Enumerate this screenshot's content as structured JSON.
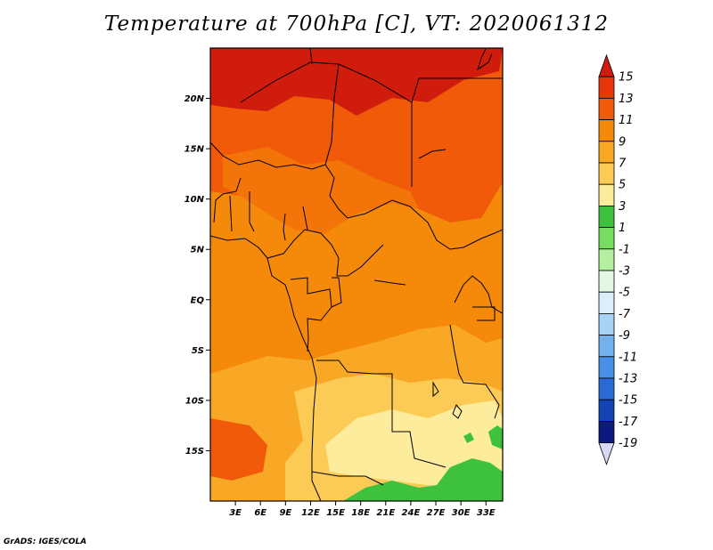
{
  "title": "Temperature at 700hPa [C], VT: 2020061312",
  "credit": "GrADS: IGES/COLA",
  "map": {
    "lon_range": [
      0,
      35
    ],
    "lat_range": [
      -20,
      25
    ],
    "lat_ticks": [
      {
        "value": 20,
        "label": "20N"
      },
      {
        "value": 15,
        "label": "15N"
      },
      {
        "value": 10,
        "label": "10N"
      },
      {
        "value": 5,
        "label": "5N"
      },
      {
        "value": 0,
        "label": "EQ"
      },
      {
        "value": -5,
        "label": "5S"
      },
      {
        "value": -10,
        "label": "10S"
      },
      {
        "value": -15,
        "label": "15S"
      }
    ],
    "lon_ticks": [
      {
        "value": 3,
        "label": "3E"
      },
      {
        "value": 6,
        "label": "6E"
      },
      {
        "value": 9,
        "label": "9E"
      },
      {
        "value": 12,
        "label": "12E"
      },
      {
        "value": 15,
        "label": "15E"
      },
      {
        "value": 18,
        "label": "18E"
      },
      {
        "value": 21,
        "label": "21E"
      },
      {
        "value": 24,
        "label": "24E"
      },
      {
        "value": 27,
        "label": "27E"
      },
      {
        "value": 30,
        "label": "30E"
      },
      {
        "value": 33,
        "label": "33E"
      }
    ]
  },
  "colorbar": {
    "labels": [
      "15",
      "13",
      "11",
      "9",
      "7",
      "5",
      "3",
      "1",
      "-1",
      "-3",
      "-5",
      "-7",
      "-9",
      "-11",
      "-13",
      "-15",
      "-17",
      "-19"
    ],
    "colors": [
      "#d01c0c",
      "#e8360a",
      "#f05a08",
      "#f58a0a",
      "#f8a824",
      "#fbcb55",
      "#fcec9c",
      "#3ec23e",
      "#78dc62",
      "#b4f0a0",
      "#e2f8e2",
      "#dceefb",
      "#a8d2f6",
      "#74b2ee",
      "#4890e6",
      "#2a6ad4",
      "#1444b4",
      "#0c1a80",
      "#d8d8f4"
    ]
  },
  "temperature_regions": [
    {
      "name": "north-warm",
      "color": "#f05a08"
    },
    {
      "name": "hot-core",
      "color": "#d01c0c"
    },
    {
      "name": "mid-warm",
      "color": "#f58a0a"
    },
    {
      "name": "south-mild",
      "color": "#f8a824"
    },
    {
      "name": "south-cool",
      "color": "#fbcb55"
    },
    {
      "name": "pale",
      "color": "#fcec9c"
    },
    {
      "name": "green",
      "color": "#3ec23e"
    }
  ]
}
